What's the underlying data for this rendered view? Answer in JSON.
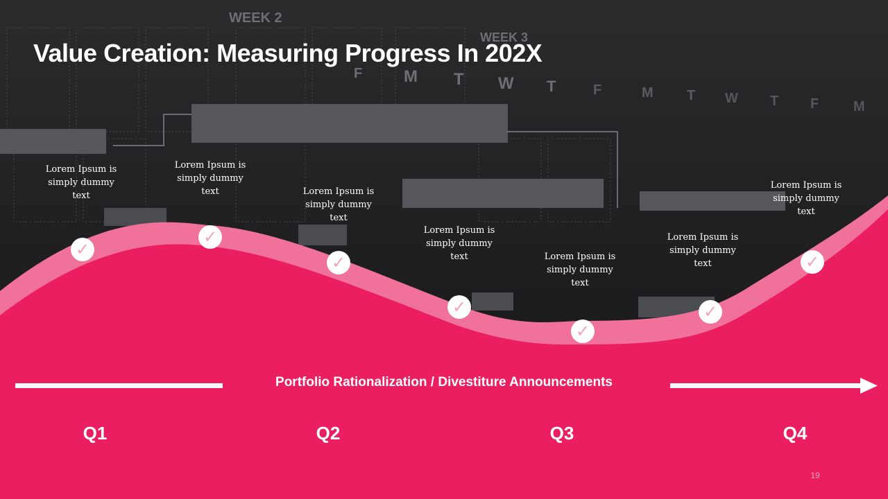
{
  "slide": {
    "title": "Value Creation: Measuring Progress In 202X",
    "page_number": "19"
  },
  "background": {
    "week_labels": [
      "WEEK 2",
      "WEEK 3"
    ],
    "day_letters": [
      "F",
      "M",
      "T",
      "W",
      "T",
      "F",
      "M",
      "T",
      "W",
      "T",
      "F",
      "M"
    ]
  },
  "milestones": [
    {
      "text": "Lorem Ipsum is simply dummy text",
      "check": "✓"
    },
    {
      "text": "Lorem Ipsum is simply dummy text",
      "check": "✓"
    },
    {
      "text": "Lorem Ipsum is simply dummy text",
      "check": "✓"
    },
    {
      "text": "Lorem Ipsum is simply dummy text",
      "check": "✓"
    },
    {
      "text": "Lorem Ipsum is simply dummy text",
      "check": "✓"
    },
    {
      "text": "Lorem Ipsum is simply dummy text",
      "check": "✓"
    },
    {
      "text": "Lorem Ipsum is simply dummy text",
      "check": "✓"
    }
  ],
  "banner": {
    "text": "Portfolio Rationalization / Divestiture Announcements"
  },
  "quarters": [
    "Q1",
    "Q2",
    "Q3",
    "Q4"
  ],
  "colors": {
    "primary_pink": "#eb1f5f",
    "light_pink": "#f07199",
    "check_color": "#f0a3bd",
    "text_white": "#ffffff"
  }
}
